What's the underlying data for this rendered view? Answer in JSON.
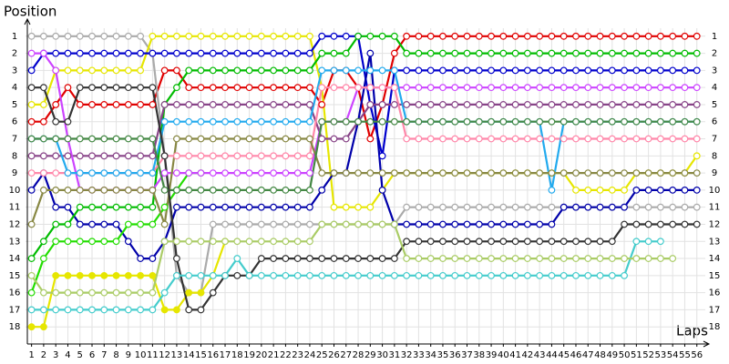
{
  "chart_data": {
    "type": "line",
    "y_label": "Position",
    "x_label": "Laps",
    "x": [
      1,
      2,
      3,
      4,
      5,
      6,
      7,
      8,
      9,
      10,
      11,
      12,
      13,
      14,
      15,
      16,
      17,
      18,
      19,
      20,
      21,
      22,
      23,
      24,
      25,
      26,
      27,
      28,
      29,
      30,
      31,
      32,
      33,
      34,
      35,
      36,
      37,
      38,
      39,
      40,
      41,
      42,
      43,
      44,
      45,
      46,
      47,
      48,
      49,
      50,
      51,
      52,
      53,
      54,
      55,
      56
    ],
    "xlim": [
      0.5,
      57
    ],
    "xticks": [
      1,
      2,
      3,
      4,
      5,
      6,
      7,
      8,
      9,
      10,
      11,
      12,
      13,
      14,
      15,
      16,
      17,
      18,
      19,
      20,
      21,
      22,
      23,
      24,
      25,
      26,
      27,
      28,
      29,
      30,
      31,
      32,
      33,
      34,
      35,
      36,
      37,
      38,
      39,
      40,
      41,
      42,
      43,
      44,
      45,
      46,
      47,
      48,
      49,
      50,
      51,
      52,
      53,
      54,
      55,
      56
    ],
    "ylim": [
      19,
      0
    ],
    "yticks": [
      1,
      2,
      3,
      4,
      5,
      6,
      7,
      8,
      9,
      10,
      11,
      12,
      13,
      14,
      15,
      16,
      17,
      18
    ],
    "grid": true,
    "series": [
      {
        "color": "#e00000",
        "values": [
          6,
          6,
          5,
          4,
          5,
          5,
          5,
          5,
          5,
          5,
          5,
          3,
          3,
          4,
          4,
          4,
          4,
          4,
          4,
          4,
          4,
          4,
          4,
          4,
          5,
          3,
          3,
          4,
          7,
          5,
          2,
          1,
          1,
          1,
          1,
          1,
          1,
          1,
          1,
          1,
          1,
          1,
          1,
          1,
          1,
          1,
          1,
          1,
          1,
          1,
          1,
          1,
          1,
          1,
          1,
          1
        ]
      },
      {
        "color": "#aaaaaa",
        "values": [
          1,
          1,
          1,
          1,
          1,
          1,
          1,
          1,
          1,
          1,
          2,
          8,
          15,
          16,
          16,
          12,
          12,
          12,
          12,
          12,
          12,
          12,
          12,
          12,
          12,
          12,
          12,
          12,
          12,
          12,
          12,
          11,
          11,
          11,
          11,
          11,
          11,
          11,
          11,
          11,
          11,
          11,
          11,
          11,
          11,
          11,
          11,
          11,
          11,
          11,
          11,
          11,
          11,
          11,
          11,
          11
        ]
      },
      {
        "color": "#e6e600",
        "values": [
          5,
          5,
          3,
          3,
          3,
          3,
          3,
          3,
          3,
          3,
          1,
          1,
          1,
          1,
          1,
          1,
          1,
          1,
          1,
          1,
          1,
          1,
          1,
          1,
          4,
          11,
          11,
          11,
          11,
          10,
          9,
          9,
          9,
          9,
          9,
          9,
          9,
          9,
          9,
          9,
          9,
          9,
          9,
          9,
          9,
          10,
          10,
          10,
          10,
          10,
          9,
          9,
          9,
          9,
          9,
          8
        ]
      },
      {
        "color": "#0000cc",
        "values": [
          3,
          2,
          2,
          2,
          2,
          2,
          2,
          2,
          2,
          2,
          2,
          2,
          2,
          2,
          2,
          2,
          2,
          2,
          2,
          2,
          2,
          2,
          2,
          2,
          1,
          1,
          1,
          1,
          5,
          8,
          3,
          3,
          3,
          3,
          3,
          3,
          3,
          3,
          3,
          3,
          3,
          3,
          3,
          3,
          3,
          3,
          3,
          3,
          3,
          3,
          3,
          3,
          3,
          3,
          3,
          3
        ]
      },
      {
        "color": "#0000aa",
        "values": [
          10,
          9,
          11,
          11,
          12,
          12,
          12,
          12,
          13,
          14,
          14,
          13,
          11,
          11,
          11,
          11,
          11,
          11,
          11,
          11,
          11,
          11,
          11,
          11,
          10,
          9,
          9,
          6,
          2,
          10,
          12,
          12,
          12,
          12,
          12,
          12,
          12,
          12,
          12,
          12,
          12,
          12,
          12,
          12,
          11,
          11,
          11,
          11,
          11,
          11,
          10,
          10,
          10,
          10,
          10,
          10
        ]
      },
      {
        "color": "#00bb00",
        "values": [
          14,
          13,
          12,
          12,
          11,
          11,
          11,
          11,
          11,
          11,
          11,
          5,
          4,
          3,
          3,
          3,
          3,
          3,
          3,
          3,
          3,
          3,
          3,
          3,
          2,
          2,
          2,
          1,
          1,
          1,
          1,
          2,
          2,
          2,
          2,
          2,
          2,
          2,
          2,
          2,
          2,
          2,
          2,
          2,
          2,
          2,
          2,
          2,
          2,
          2,
          2,
          2,
          2,
          2,
          2,
          2
        ]
      },
      {
        "color": "#22dd00",
        "values": [
          16,
          14,
          13,
          13,
          13,
          13,
          13,
          13,
          12,
          12,
          12,
          11,
          10,
          9,
          9,
          null,
          null,
          null,
          null,
          null,
          null,
          null,
          null,
          null,
          null,
          null,
          null,
          null,
          null,
          null,
          null,
          null,
          null,
          null,
          null,
          null,
          null,
          null,
          null,
          null,
          null,
          null,
          null,
          null,
          null,
          null,
          null,
          null,
          null,
          null,
          null,
          null,
          null,
          null,
          null,
          null
        ]
      },
      {
        "color": "#e6e600",
        "filled": true,
        "values": [
          18,
          18,
          15,
          15,
          15,
          15,
          15,
          15,
          15,
          15,
          15,
          17,
          17,
          16,
          16,
          15,
          13,
          null,
          null,
          null,
          null,
          null,
          null,
          null,
          null,
          null,
          null,
          null,
          null,
          null,
          null,
          null,
          null,
          null,
          null,
          null,
          null,
          null,
          null,
          null,
          null,
          null,
          null,
          null,
          null,
          null,
          null,
          null,
          null,
          null,
          null,
          null,
          null,
          null,
          null,
          null
        ]
      },
      {
        "color": "#884488",
        "values": [
          8,
          8,
          8,
          8,
          8,
          8,
          8,
          8,
          8,
          8,
          8,
          5,
          5,
          5,
          5,
          5,
          5,
          5,
          5,
          5,
          5,
          5,
          5,
          5,
          7,
          7,
          7,
          6,
          5,
          5,
          5,
          5,
          5,
          5,
          5,
          5,
          5,
          5,
          5,
          5,
          5,
          5,
          5,
          5,
          5,
          5,
          5,
          5,
          5,
          5,
          5,
          5,
          5,
          5,
          5,
          5
        ]
      },
      {
        "color": "#cc44ff",
        "values": [
          2,
          2,
          3,
          7,
          10,
          10,
          10,
          10,
          10,
          10,
          10,
          9,
          9,
          9,
          9,
          9,
          9,
          9,
          9,
          9,
          9,
          9,
          9,
          9,
          6,
          6,
          6,
          4,
          4,
          4,
          4,
          4,
          4,
          4,
          4,
          4,
          4,
          4,
          4,
          4,
          4,
          4,
          4,
          4,
          4,
          4,
          4,
          4,
          4,
          4,
          4,
          4,
          4,
          4,
          4,
          4
        ]
      },
      {
        "color": "#ff88aa",
        "values": [
          9,
          9,
          9,
          9,
          9,
          9,
          9,
          9,
          9,
          9,
          9,
          8,
          8,
          8,
          8,
          8,
          8,
          8,
          8,
          8,
          8,
          8,
          8,
          8,
          4,
          4,
          4,
          4,
          4,
          4,
          4,
          7,
          7,
          7,
          7,
          7,
          7,
          7,
          7,
          7,
          7,
          7,
          7,
          7,
          7,
          7,
          7,
          7,
          7,
          7,
          7,
          7,
          7,
          7,
          7,
          7
        ]
      },
      {
        "color": "#22aaee",
        "values": [
          7,
          7,
          7,
          9,
          9,
          9,
          9,
          9,
          9,
          9,
          9,
          6,
          6,
          6,
          6,
          6,
          6,
          6,
          6,
          6,
          6,
          6,
          6,
          6,
          3,
          3,
          3,
          3,
          3,
          3,
          3,
          6,
          6,
          6,
          6,
          6,
          6,
          6,
          6,
          6,
          6,
          6,
          6,
          10,
          6,
          6,
          6,
          6,
          6,
          6,
          6,
          6,
          6,
          6,
          6,
          6
        ]
      },
      {
        "color": "#888844",
        "values": [
          12,
          10,
          10,
          10,
          10,
          10,
          10,
          10,
          10,
          10,
          10,
          12,
          7,
          7,
          7,
          7,
          7,
          7,
          7,
          7,
          7,
          7,
          7,
          7,
          9,
          9,
          9,
          9,
          9,
          9,
          9,
          9,
          9,
          9,
          9,
          9,
          9,
          9,
          9,
          9,
          9,
          9,
          9,
          9,
          9,
          9,
          9,
          9,
          9,
          9,
          9,
          9,
          9,
          9,
          9,
          9
        ]
      },
      {
        "color": "#448844",
        "values": [
          7,
          7,
          7,
          7,
          7,
          7,
          7,
          7,
          7,
          7,
          7,
          10,
          10,
          10,
          10,
          10,
          10,
          10,
          10,
          10,
          10,
          10,
          10,
          10,
          6,
          6,
          6,
          6,
          6,
          6,
          6,
          6,
          6,
          6,
          6,
          6,
          6,
          6,
          6,
          6,
          6,
          6,
          6,
          6,
          6,
          6,
          6,
          6,
          6,
          6,
          6,
          6,
          6,
          6,
          6,
          6
        ]
      },
      {
        "color": "#333333",
        "values": [
          4,
          4,
          6,
          6,
          4,
          4,
          4,
          4,
          4,
          4,
          4,
          8,
          14,
          17,
          17,
          16,
          15,
          15,
          15,
          14,
          14,
          14,
          14,
          14,
          14,
          14,
          14,
          14,
          14,
          14,
          14,
          13,
          13,
          13,
          13,
          13,
          13,
          13,
          13,
          13,
          13,
          13,
          13,
          13,
          13,
          13,
          13,
          13,
          13,
          12,
          12,
          12,
          12,
          12,
          12,
          12
        ]
      },
      {
        "color": "#44cccc",
        "values": [
          17,
          17,
          17,
          17,
          17,
          17,
          17,
          17,
          17,
          17,
          17,
          16,
          15,
          15,
          15,
          15,
          15,
          14,
          15,
          15,
          15,
          15,
          15,
          15,
          15,
          15,
          15,
          15,
          15,
          15,
          15,
          15,
          15,
          15,
          15,
          15,
          15,
          15,
          15,
          15,
          15,
          15,
          15,
          15,
          15,
          15,
          15,
          15,
          15,
          15,
          13,
          13,
          13,
          null,
          null,
          null
        ]
      },
      {
        "color": "#aacc66",
        "values": [
          15,
          16,
          16,
          16,
          16,
          16,
          16,
          16,
          16,
          16,
          16,
          13,
          13,
          13,
          13,
          13,
          13,
          13,
          13,
          13,
          13,
          13,
          13,
          13,
          12,
          12,
          12,
          12,
          12,
          12,
          12,
          14,
          14,
          14,
          14,
          14,
          14,
          14,
          14,
          14,
          14,
          14,
          14,
          14,
          14,
          14,
          14,
          14,
          14,
          14,
          14,
          14,
          14,
          14,
          null,
          null
        ]
      }
    ]
  }
}
